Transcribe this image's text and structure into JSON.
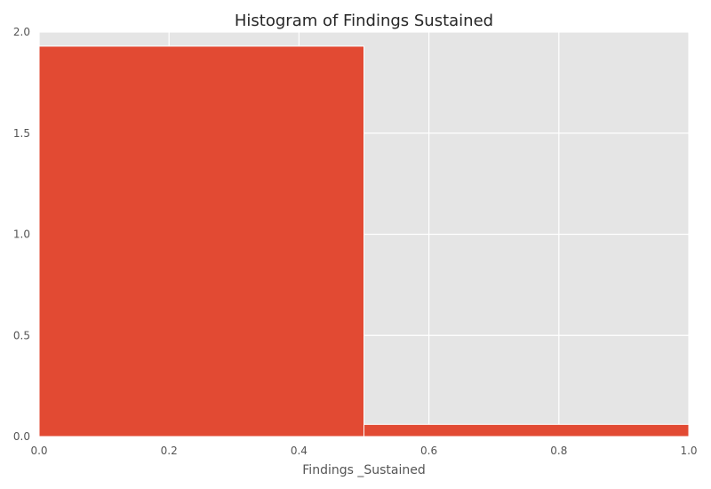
{
  "chart_data": {
    "type": "histogram",
    "title": "Histogram of Findings  Sustained",
    "xlabel": "Findings _Sustained",
    "ylabel": "",
    "xlim": [
      0.0,
      1.0
    ],
    "ylim": [
      0.0,
      2.0
    ],
    "xticks": [
      "0.0",
      "0.2",
      "0.4",
      "0.6",
      "0.8",
      "1.0"
    ],
    "yticks": [
      "0.0",
      "0.5",
      "1.0",
      "1.5",
      "2.0"
    ],
    "grid": true,
    "colors": {
      "bar": "#E24A33",
      "plot_background": "#E5E5E5",
      "grid": "#FFFFFF"
    },
    "bins": [
      {
        "x0": 0.0,
        "x1": 0.5,
        "value": 1.93
      },
      {
        "x0": 0.5,
        "x1": 1.0,
        "value": 0.06
      }
    ]
  }
}
